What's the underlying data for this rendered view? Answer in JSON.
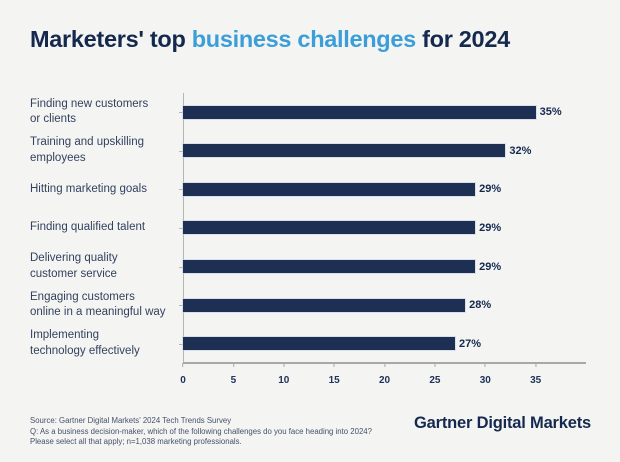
{
  "title": {
    "prefix": "Marketers' top ",
    "highlight": "business challenges",
    "suffix": " for 2024"
  },
  "colors": {
    "background": "#f4f4f2",
    "bar": "#1d3054",
    "title_navy": "#15294e",
    "title_blue": "#3b9ed9",
    "category_label": "#32425e",
    "axis_line": "#a8a8a8"
  },
  "chart_data": {
    "type": "bar",
    "orientation": "horizontal",
    "title": "Marketers' top business challenges for 2024",
    "categories": [
      "Finding new customers or clients",
      "Training and upskilling employees",
      "Hitting marketing goals",
      "Finding qualified talent",
      "Delivering quality customer service",
      "Engaging customers online in a meaningful way",
      "Implementing technology effectively"
    ],
    "label_lines": [
      [
        "Finding new customers",
        "or clients"
      ],
      [
        "Training and upskilling",
        "employees"
      ],
      [
        "Hitting marketing goals"
      ],
      [
        "Finding qualified talent"
      ],
      [
        "Delivering quality",
        "customer service"
      ],
      [
        "Engaging customers",
        "online in a meaningful way"
      ],
      [
        "Implementing",
        "technology effectively"
      ]
    ],
    "values": [
      35,
      32,
      29,
      29,
      29,
      28,
      27
    ],
    "value_labels": [
      "35%",
      "32%",
      "29%",
      "29%",
      "29%",
      "28%",
      "27%"
    ],
    "x_ticks": [
      0,
      5,
      10,
      15,
      20,
      25,
      30,
      35
    ],
    "xlim": [
      0,
      40
    ],
    "xlabel": "",
    "ylabel": "",
    "grid": false,
    "legend": false
  },
  "footer": {
    "source_lines": [
      "Source: Gartner Digital Markets' 2024 Tech Trends Survey",
      "Q: As a business decision-maker, which of the following challenges do you face heading into 2024?",
      "Please select all that apply; n=1,038 marketing professionals."
    ],
    "brand": "Gartner Digital Markets"
  }
}
